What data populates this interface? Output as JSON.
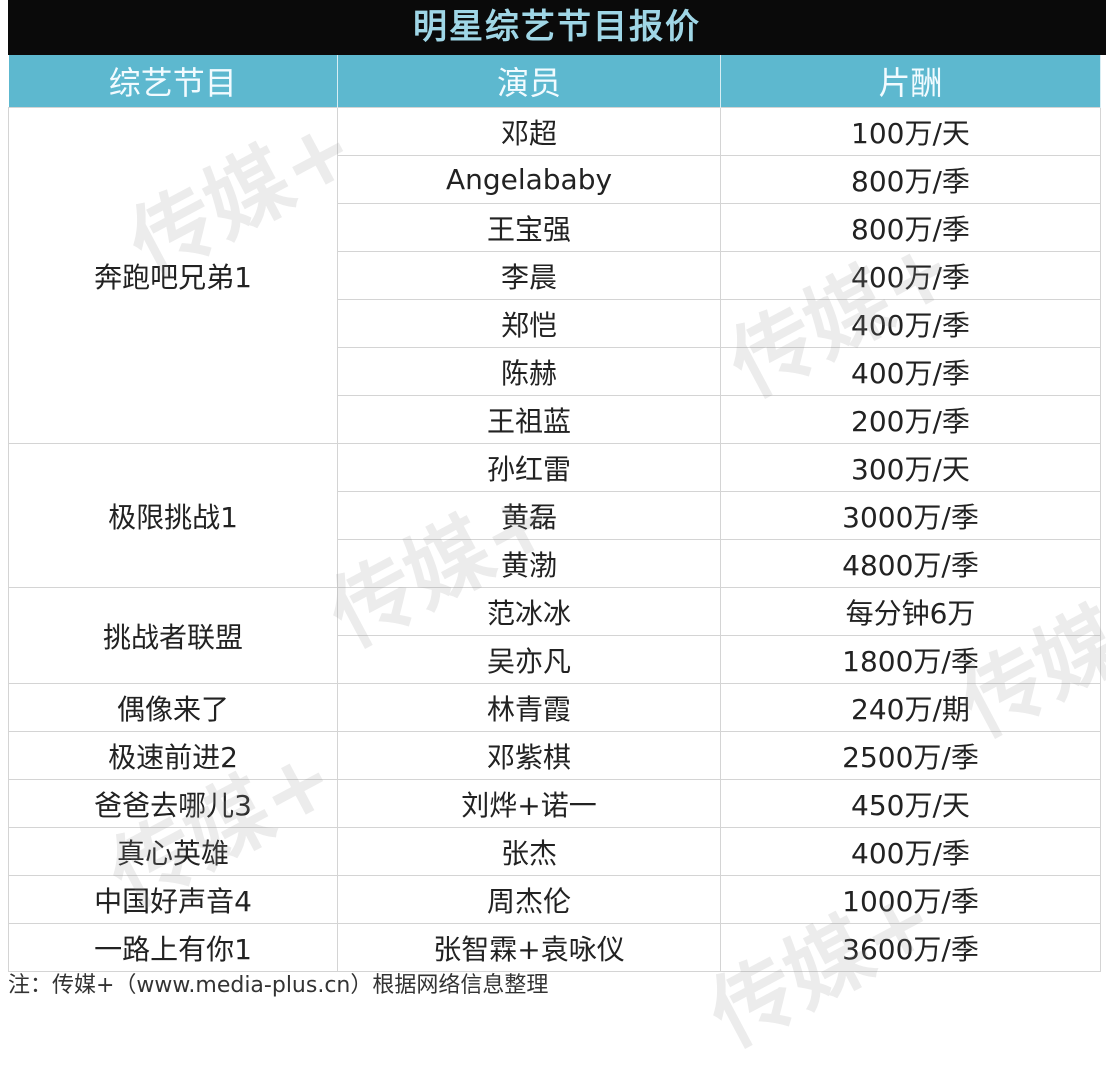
{
  "title": "明星综艺节目报价",
  "header": [
    "综艺节目",
    "演员",
    "片酬"
  ],
  "groups": [
    {
      "show": "奔跑吧兄弟1",
      "rows": [
        {
          "actor": "邓超",
          "fee": "100万/天"
        },
        {
          "actor": "Angelababy",
          "fee": "800万/季"
        },
        {
          "actor": "王宝强",
          "fee": "800万/季"
        },
        {
          "actor": "李晨",
          "fee": "400万/季"
        },
        {
          "actor": "郑恺",
          "fee": "400万/季"
        },
        {
          "actor": "陈赫",
          "fee": "400万/季"
        },
        {
          "actor": "王祖蓝",
          "fee": "200万/季"
        }
      ]
    },
    {
      "show": "极限挑战1",
      "rows": [
        {
          "actor": "孙红雷",
          "fee": "300万/天"
        },
        {
          "actor": "黄磊",
          "fee": "3000万/季"
        },
        {
          "actor": "黄渤",
          "fee": "4800万/季"
        }
      ]
    },
    {
      "show": "挑战者联盟",
      "rows": [
        {
          "actor": "范冰冰",
          "fee": "每分钟6万"
        },
        {
          "actor": "吴亦凡",
          "fee": "1800万/季"
        }
      ]
    },
    {
      "show": "偶像来了",
      "rows": [
        {
          "actor": "林青霞",
          "fee": "240万/期"
        }
      ]
    },
    {
      "show": "极速前进2",
      "rows": [
        {
          "actor": "邓紫棋",
          "fee": "2500万/季"
        }
      ]
    },
    {
      "show": "爸爸去哪儿3",
      "rows": [
        {
          "actor": "刘烨+诺一",
          "fee": "450万/天"
        }
      ]
    },
    {
      "show": "真心英雄",
      "rows": [
        {
          "actor": "张杰",
          "fee": "400万/季"
        }
      ]
    },
    {
      "show": "中国好声音4",
      "rows": [
        {
          "actor": "周杰伦",
          "fee": "1000万/季"
        }
      ]
    },
    {
      "show": "一路上有你1",
      "rows": [
        {
          "actor": "张智霖+袁咏仪",
          "fee": "3600万/季"
        }
      ]
    }
  ],
  "watermark": "传媒+",
  "footnote": "注：传媒+（www.media-plus.cn）根据网络信息整理"
}
